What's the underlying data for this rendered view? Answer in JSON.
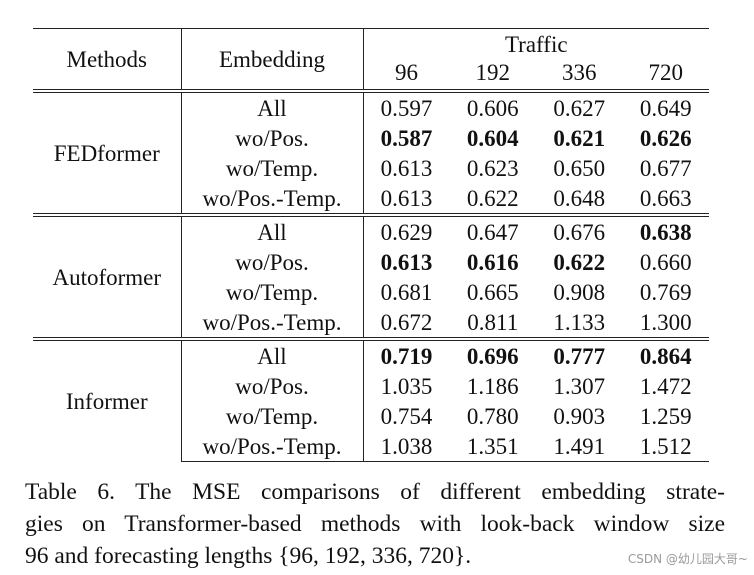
{
  "table": {
    "header": {
      "methods": "Methods",
      "embedding": "Embedding",
      "dataset": "Traffic",
      "horizons": [
        "96",
        "192",
        "336",
        "720"
      ]
    },
    "groups": [
      {
        "method": "FEDformer",
        "rows": [
          {
            "embedding": "All",
            "values": [
              "0.597",
              "0.606",
              "0.627",
              "0.649"
            ],
            "bold": [
              false,
              false,
              false,
              false
            ]
          },
          {
            "embedding": "wo/Pos.",
            "values": [
              "0.587",
              "0.604",
              "0.621",
              "0.626"
            ],
            "bold": [
              true,
              true,
              true,
              true
            ]
          },
          {
            "embedding": "wo/Temp.",
            "values": [
              "0.613",
              "0.623",
              "0.650",
              "0.677"
            ],
            "bold": [
              false,
              false,
              false,
              false
            ]
          },
          {
            "embedding": "wo/Pos.-Temp.",
            "values": [
              "0.613",
              "0.622",
              "0.648",
              "0.663"
            ],
            "bold": [
              false,
              false,
              false,
              false
            ]
          }
        ]
      },
      {
        "method": "Autoformer",
        "rows": [
          {
            "embedding": "All",
            "values": [
              "0.629",
              "0.647",
              "0.676",
              "0.638"
            ],
            "bold": [
              false,
              false,
              false,
              true
            ]
          },
          {
            "embedding": "wo/Pos.",
            "values": [
              "0.613",
              "0.616",
              "0.622",
              "0.660"
            ],
            "bold": [
              true,
              true,
              true,
              false
            ]
          },
          {
            "embedding": "wo/Temp.",
            "values": [
              "0.681",
              "0.665",
              "0.908",
              "0.769"
            ],
            "bold": [
              false,
              false,
              false,
              false
            ]
          },
          {
            "embedding": "wo/Pos.-Temp.",
            "values": [
              "0.672",
              "0.811",
              "1.133",
              "1.300"
            ],
            "bold": [
              false,
              false,
              false,
              false
            ]
          }
        ]
      },
      {
        "method": "Informer",
        "rows": [
          {
            "embedding": "All",
            "values": [
              "0.719",
              "0.696",
              "0.777",
              "0.864"
            ],
            "bold": [
              true,
              true,
              true,
              true
            ]
          },
          {
            "embedding": "wo/Pos.",
            "values": [
              "1.035",
              "1.186",
              "1.307",
              "1.472"
            ],
            "bold": [
              false,
              false,
              false,
              false
            ]
          },
          {
            "embedding": "wo/Temp.",
            "values": [
              "0.754",
              "0.780",
              "0.903",
              "1.259"
            ],
            "bold": [
              false,
              false,
              false,
              false
            ]
          },
          {
            "embedding": "wo/Pos.-Temp.",
            "values": [
              "1.038",
              "1.351",
              "1.491",
              "1.512"
            ],
            "bold": [
              false,
              false,
              false,
              false
            ]
          }
        ]
      }
    ]
  },
  "caption": {
    "line1": "Table 6.  The MSE comparisons of different embedding strate-",
    "line2": "gies on Transformer-based methods with look-back window size",
    "line3": "96 and forecasting lengths {96, 192, 336, 720}."
  },
  "watermark": "CSDN @幼儿园大哥~"
}
